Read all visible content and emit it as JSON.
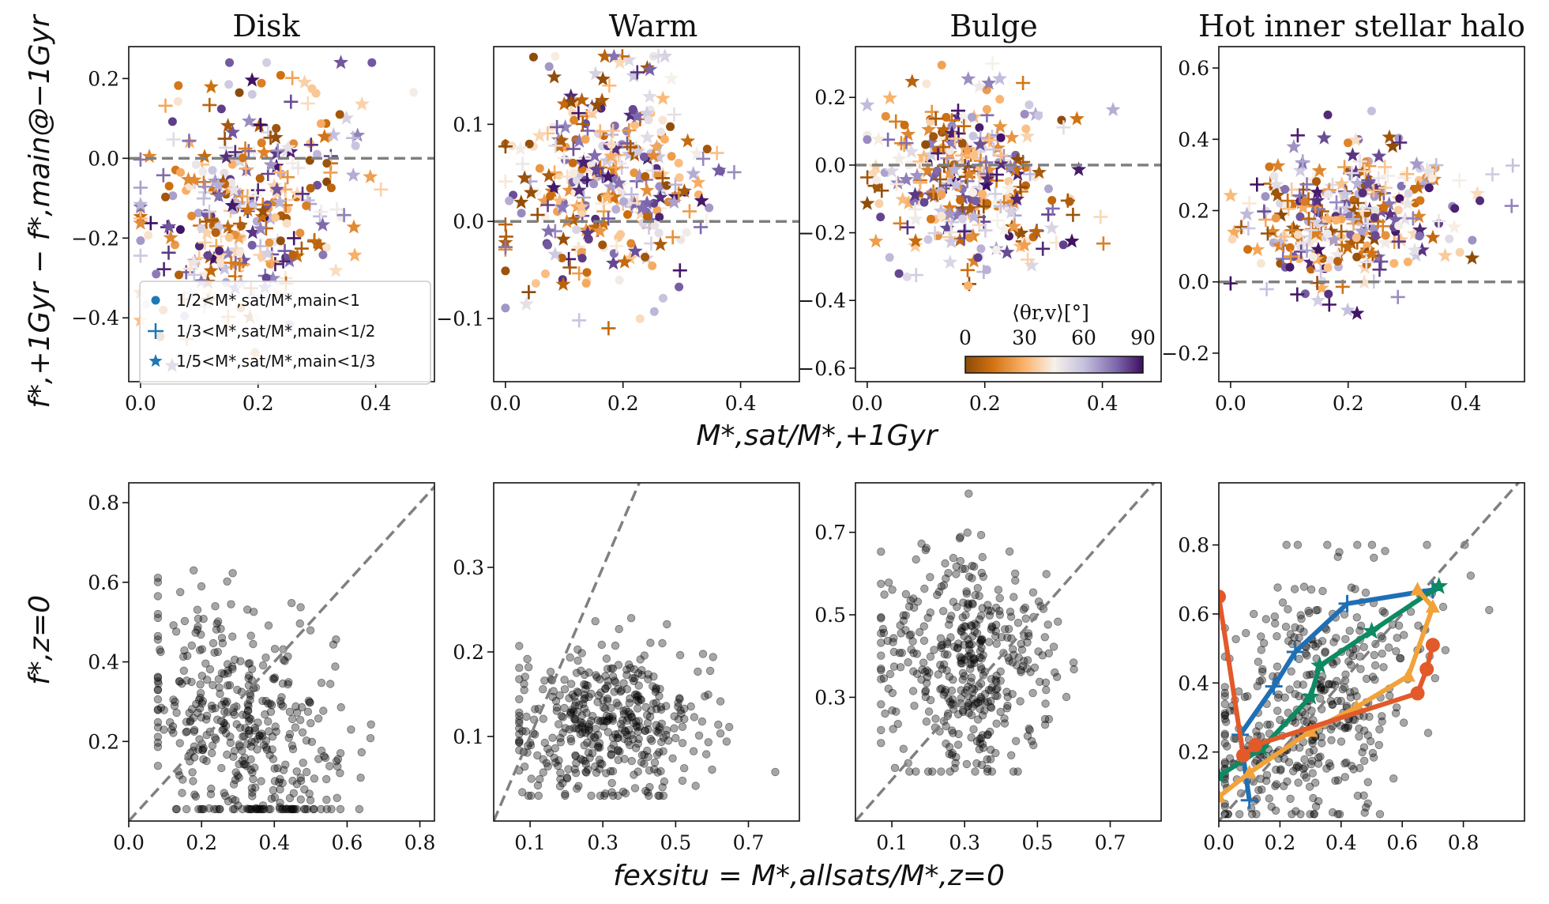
{
  "figure": {
    "titles": [
      "Disk",
      "Warm",
      "Bulge",
      "Hot inner stellar halo"
    ],
    "top_ylabel": "f*,+1Gyr − f*,main@−1Gyr",
    "top_xlabel": "M*,sat/M*,+1Gyr",
    "bottom_ylabel": "f*,z=0",
    "bottom_xlabel": "fexsitu = M*,allsats/M*,z=0",
    "legend": [
      {
        "marker": "circle",
        "label": "1/2<M*,sat/M*,main<1",
        "color": "#1f77b4"
      },
      {
        "marker": "plus",
        "label": "1/3<M*,sat/M*,main<1/2",
        "color": "#1f77b4"
      },
      {
        "marker": "star",
        "label": "1/5<M*,sat/M*,main<1/3",
        "color": "#1f77b4"
      }
    ],
    "colorbar": {
      "label": "⟨θr,v⟩[°]",
      "ticks": [
        "0",
        "30",
        "60",
        "90"
      ],
      "range": [
        0,
        90
      ],
      "colormap": "PuOr"
    }
  },
  "chart_data": [
    {
      "type": "scatter",
      "title": "Disk",
      "row": "top",
      "xlim": [
        -0.02,
        0.5
      ],
      "ylim": [
        -0.56,
        0.28
      ],
      "xticks": [
        0.0,
        0.2,
        0.4
      ],
      "xtick_labels": [
        "0.0",
        "0.2",
        "0.4"
      ],
      "yticks": [
        -0.4,
        -0.2,
        0.0,
        0.2
      ],
      "ytick_labels": [
        "−0.4",
        "−0.2",
        "0.0",
        "0.2"
      ],
      "reference_line": {
        "kind": "hline",
        "y": 0
      },
      "cloud": {
        "n": 330,
        "xmean": 0.18,
        "xsd": 0.09,
        "xmin": 0.0,
        "xmax": 0.48,
        "ymean": -0.12,
        "ysd": 0.14,
        "ymin": -0.52,
        "ymax": 0.24,
        "slope": 0.6,
        "seed": 11
      }
    },
    {
      "type": "scatter",
      "title": "Warm",
      "row": "top",
      "xlim": [
        -0.02,
        0.5
      ],
      "ylim": [
        -0.165,
        0.18
      ],
      "xticks": [
        0.0,
        0.2,
        0.4
      ],
      "xtick_labels": [
        "0.0",
        "0.2",
        "0.4"
      ],
      "yticks": [
        -0.1,
        0.0,
        0.1
      ],
      "ytick_labels": [
        "−0.1",
        "0.0",
        "0.1"
      ],
      "reference_line": {
        "kind": "hline",
        "y": 0
      },
      "cloud": {
        "n": 330,
        "xmean": 0.17,
        "xsd": 0.08,
        "xmin": 0.0,
        "xmax": 0.48,
        "ymean": 0.04,
        "ysd": 0.055,
        "ymin": -0.16,
        "ymax": 0.17,
        "slope": 0.1,
        "seed": 23
      }
    },
    {
      "type": "scatter",
      "title": "Bulge",
      "row": "top",
      "xlim": [
        -0.02,
        0.5
      ],
      "ylim": [
        -0.64,
        0.35
      ],
      "xticks": [
        0.0,
        0.2,
        0.4
      ],
      "xtick_labels": [
        "0.0",
        "0.2",
        "0.4"
      ],
      "yticks": [
        -0.6,
        -0.4,
        -0.2,
        0.0,
        0.2
      ],
      "ytick_labels": [
        "−0.6",
        "−0.4",
        "−0.2",
        "0.0",
        "0.2"
      ],
      "reference_line": {
        "kind": "hline",
        "y": 0
      },
      "cloud": {
        "n": 330,
        "xmean": 0.17,
        "xsd": 0.08,
        "xmin": 0.0,
        "xmax": 0.48,
        "ymean": -0.04,
        "ysd": 0.13,
        "ymin": -0.62,
        "ymax": 0.3,
        "slope": -0.2,
        "seed": 37
      }
    },
    {
      "type": "scatter",
      "title": "Hot inner stellar halo",
      "row": "top",
      "xlim": [
        -0.02,
        0.5
      ],
      "ylim": [
        -0.28,
        0.66
      ],
      "xticks": [
        0.0,
        0.2,
        0.4
      ],
      "xtick_labels": [
        "0.0",
        "0.2",
        "0.4"
      ],
      "yticks": [
        -0.2,
        0.0,
        0.2,
        0.4,
        0.6
      ],
      "ytick_labels": [
        "−0.2",
        "0.0",
        "0.2",
        "0.4",
        "0.6"
      ],
      "reference_line": {
        "kind": "hline",
        "y": 0
      },
      "cloud": {
        "n": 330,
        "xmean": 0.19,
        "xsd": 0.09,
        "xmin": 0.0,
        "xmax": 0.48,
        "ymean": 0.18,
        "ysd": 0.1,
        "ymin": -0.2,
        "ymax": 0.62,
        "slope": 0.3,
        "seed": 51
      }
    },
    {
      "type": "scatter",
      "title": "",
      "row": "bottom",
      "xlim": [
        0.0,
        0.84
      ],
      "ylim": [
        0.0,
        0.85
      ],
      "xticks": [
        0.0,
        0.2,
        0.4,
        0.6,
        0.8
      ],
      "xtick_labels": [
        "0.0",
        "0.2",
        "0.4",
        "0.6",
        "0.8"
      ],
      "yticks": [
        0.2,
        0.4,
        0.6,
        0.8
      ],
      "ytick_labels": [
        "0.2",
        "0.4",
        "0.6",
        "0.8"
      ],
      "reference_line": {
        "kind": "diagonal"
      },
      "cloud": {
        "n": 420,
        "xmean": 0.3,
        "xsd": 0.15,
        "xmin": 0.08,
        "xmax": 0.84,
        "ymean": 0.22,
        "ysd": 0.15,
        "ymin": 0.03,
        "ymax": 0.63,
        "slope": -0.8,
        "seed": 61
      }
    },
    {
      "type": "scatter",
      "title": "",
      "row": "bottom",
      "xlim": [
        0.0,
        0.84
      ],
      "ylim": [
        0.0,
        0.4
      ],
      "xticks": [
        0.1,
        0.3,
        0.5,
        0.7
      ],
      "xtick_labels": [
        "0.1",
        "0.3",
        "0.5",
        "0.7"
      ],
      "yticks": [
        0.1,
        0.2,
        0.3
      ],
      "ytick_labels": [
        "0.1",
        "0.2",
        "0.3"
      ],
      "reference_line": {
        "kind": "diagonal"
      },
      "cloud": {
        "n": 420,
        "xmean": 0.32,
        "xsd": 0.14,
        "xmin": 0.07,
        "xmax": 0.82,
        "ymean": 0.11,
        "ysd": 0.045,
        "ymin": 0.03,
        "ymax": 0.24,
        "slope": -0.05,
        "seed": 73
      }
    },
    {
      "type": "scatter",
      "title": "",
      "row": "bottom",
      "xlim": [
        0.0,
        0.84
      ],
      "ylim": [
        0.0,
        0.82
      ],
      "xticks": [
        0.1,
        0.3,
        0.5,
        0.7
      ],
      "xtick_labels": [
        "0.1",
        "0.3",
        "0.5",
        "0.7"
      ],
      "yticks": [
        0.3,
        0.5,
        0.7
      ],
      "ytick_labels": [
        "0.3",
        "0.5",
        "0.7"
      ],
      "reference_line": {
        "kind": "diagonal"
      },
      "cloud": {
        "n": 420,
        "xmean": 0.3,
        "xsd": 0.12,
        "xmin": 0.07,
        "xmax": 0.82,
        "ymean": 0.38,
        "ysd": 0.13,
        "ymin": 0.12,
        "ymax": 0.8,
        "slope": 0.0,
        "seed": 89
      }
    },
    {
      "type": "line",
      "title": "",
      "row": "bottom",
      "xlim": [
        0.0,
        1.0
      ],
      "ylim": [
        0.0,
        0.98
      ],
      "xticks": [
        0.0,
        0.2,
        0.4,
        0.6,
        0.8
      ],
      "xtick_labels": [
        "0.0",
        "0.2",
        "0.4",
        "0.6",
        "0.8"
      ],
      "yticks": [
        0.2,
        0.4,
        0.6,
        0.8
      ],
      "ytick_labels": [
        "0.2",
        "0.4",
        "0.6",
        "0.8"
      ],
      "reference_line": {
        "kind": "diagonal"
      },
      "cloud": {
        "n": 420,
        "xmean": 0.3,
        "xsd": 0.18,
        "xmin": 0.02,
        "xmax": 0.98,
        "ymean": 0.32,
        "ysd": 0.18,
        "ymin": 0.02,
        "ymax": 0.8,
        "slope": 0.6,
        "seed": 97
      },
      "series": [
        {
          "name": "blue",
          "color": "#1f6fb5",
          "marker": "plus",
          "x": [
            0.1,
            0.07,
            0.18,
            0.25,
            0.42,
            0.7,
            0.7
          ],
          "y": [
            0.06,
            0.25,
            0.39,
            0.49,
            0.63,
            0.67,
            0.67
          ]
        },
        {
          "name": "green",
          "color": "#0d8a63",
          "marker": "star",
          "x": [
            0.0,
            0.14,
            0.3,
            0.33,
            0.5,
            0.72
          ],
          "y": [
            0.13,
            0.21,
            0.36,
            0.45,
            0.55,
            0.68
          ]
        },
        {
          "name": "orange",
          "color": "#f2a23a",
          "marker": "triangle",
          "x": [
            0.0,
            0.1,
            0.3,
            0.45,
            0.62,
            0.7,
            0.65
          ],
          "y": [
            0.07,
            0.14,
            0.26,
            0.33,
            0.42,
            0.62,
            0.67
          ]
        },
        {
          "name": "red",
          "color": "#e2592a",
          "marker": "circle",
          "x": [
            0.0,
            0.08,
            0.12,
            0.65,
            0.68,
            0.7
          ],
          "y": [
            0.65,
            0.19,
            0.22,
            0.37,
            0.44,
            0.51
          ]
        }
      ]
    }
  ]
}
